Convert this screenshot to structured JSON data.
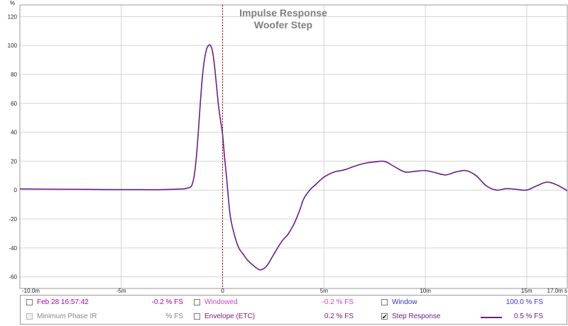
{
  "chart_data": {
    "type": "line",
    "title": "Impulse Response",
    "subtitle": "Woofer Step",
    "ylabel": "%",
    "xlabel": "s",
    "xlim": [
      -10.0,
      17.0
    ],
    "ylim": [
      -68,
      128
    ],
    "grid": true,
    "x_ticks": [
      {
        "value": -10,
        "label": "-10.0m"
      },
      {
        "value": -5,
        "label": "-5m"
      },
      {
        "value": 0,
        "label": "0"
      },
      {
        "value": 5,
        "label": "5m"
      },
      {
        "value": 10,
        "label": "10m"
      },
      {
        "value": 15,
        "label": "15m"
      },
      {
        "value": 17,
        "label": "17.0m s"
      }
    ],
    "y_ticks": [
      {
        "value": 120,
        "label": "120"
      },
      {
        "value": 100,
        "label": "100"
      },
      {
        "value": 80,
        "label": "80"
      },
      {
        "value": 60,
        "label": "60"
      },
      {
        "value": 40,
        "label": "40"
      },
      {
        "value": 20,
        "label": "20"
      },
      {
        "value": 0,
        "label": "0"
      },
      {
        "value": -20,
        "label": "-20"
      },
      {
        "value": -40,
        "label": "-40"
      },
      {
        "value": -60,
        "label": "-60"
      }
    ],
    "marker_x": 0,
    "colors": {
      "line": "#6a1e8a",
      "marker": "#c00000",
      "grid": "#d4d4d4",
      "title": "#7f7f7f"
    },
    "series": [
      {
        "name": "Step Response",
        "x": [
          -10,
          -8,
          -6,
          -5,
          -4,
          -3,
          -2,
          -1.8,
          -1.6,
          -1.5,
          -1.4,
          -1.3,
          -1.2,
          -1.1,
          -1.0,
          -0.9,
          -0.8,
          -0.7,
          -0.6,
          -0.5,
          -0.4,
          -0.3,
          -0.2,
          -0.1,
          0,
          0.1,
          0.2,
          0.3,
          0.4,
          0.6,
          0.8,
          1.0,
          1.2,
          1.5,
          1.8,
          2.0,
          2.2,
          2.5,
          2.8,
          3.0,
          3.2,
          3.5,
          3.8,
          4.0,
          4.3,
          4.6,
          5.0,
          5.5,
          6.0,
          6.5,
          7.0,
          7.5,
          8.0,
          8.5,
          9.0,
          9.5,
          10.0,
          10.5,
          11.0,
          11.5,
          12.0,
          12.5,
          13.0,
          13.5,
          14.0,
          14.5,
          15.0,
          15.5,
          16.0,
          16.5,
          17.0
        ],
        "y": [
          0.8,
          0.6,
          0.4,
          0.3,
          0.3,
          0.3,
          0.8,
          1.2,
          2.0,
          4.0,
          10.0,
          22.0,
          40.0,
          60.0,
          78.0,
          90.0,
          97.0,
          100.0,
          100.0,
          96.0,
          86.0,
          72.0,
          58.0,
          48.0,
          38.0,
          22.0,
          8.0,
          -8.0,
          -20.0,
          -32.0,
          -40.0,
          -44.0,
          -48.0,
          -52.0,
          -55.0,
          -54.5,
          -52.0,
          -45.0,
          -38.0,
          -34.0,
          -31.0,
          -24.0,
          -14.0,
          -6.0,
          0.0,
          4.0,
          9.0,
          12.5,
          14.0,
          16.5,
          18.5,
          19.5,
          19.8,
          16.0,
          12.5,
          13.0,
          13.5,
          12.0,
          10.5,
          12.5,
          13.5,
          10.0,
          3.0,
          0.0,
          1.0,
          0.5,
          0.0,
          3.0,
          5.5,
          3.5,
          -0.5
        ]
      }
    ]
  },
  "legend": {
    "row1": [
      {
        "label": "Feb 28 16:57:42",
        "value": "-0.2 % FS",
        "checked": false,
        "color": "#b000b0"
      },
      {
        "label": "Windowed",
        "value": "-0.2 % FS",
        "checked": false,
        "color": "#cc44cc"
      },
      {
        "label": "Window",
        "value": "100.0 % FS",
        "checked": false,
        "color": "#3333cc"
      }
    ],
    "row2": [
      {
        "label": "Minimum Phase IR",
        "value": "% FS",
        "checked": false,
        "color": "#888888"
      },
      {
        "label": "Envelope (ETC)",
        "value": "0.2 % FS",
        "checked": false,
        "color": "#7a1a7a"
      },
      {
        "label": "Step Response",
        "value": "0.5 % FS",
        "checked": true,
        "check_mark": "✔",
        "color": "#6a1e8a"
      }
    ]
  }
}
